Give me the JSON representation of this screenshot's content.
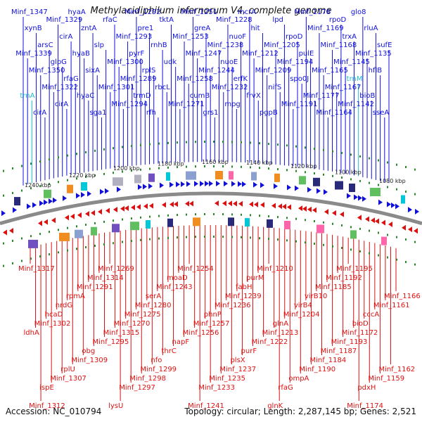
{
  "title": "Methylacidiphilum infernorum V4, complete genome",
  "footer": {
    "accession": "Accession: NC_010794",
    "topology": "Topology: circular; Length: 2,287,145 bp; Genes: 2,521"
  },
  "colors": {
    "forward": "#1010dd",
    "reverse": "#dd1010",
    "rna": "#22bbcc",
    "backbone": "#8a8a8a",
    "tick": "#2a8a2a"
  },
  "scale_labels": [
    "1240 kbp",
    "1220 kbp",
    "1200 kbp",
    "1180 kbp",
    "1160 kbp",
    "1140 kbp",
    "1120 kbp",
    "1100 kbp",
    "1080 kbp"
  ],
  "top_labels": [
    "Minf_1347",
    "Minf_1339",
    "trnA",
    "xynB",
    "Minf_1350",
    "cirA",
    "arsC",
    "Minf_1322",
    "Minf_1329",
    "glpG",
    "cirA",
    "cirA",
    "rfaG",
    "hyaA",
    "hyaB",
    "hyaC",
    "zntA",
    "sixA",
    "sga1",
    "slp",
    "Minf_1301",
    "rfaC",
    "Minf_1300",
    "Minf_1294",
    "Minf_1293",
    "Minf_1289",
    "Minf_1292",
    "pyrF",
    "trmD",
    "pre1",
    "rplS",
    "rfh",
    "rnhB",
    "rbcL",
    "tktA",
    "udk",
    "Minf_1271",
    "Minf_1253",
    "Minf_1258",
    "Minf_1251",
    "Minf_1247",
    "cumB",
    "greA",
    "Minf_1244",
    "grs1",
    "Minf_1238",
    "Minf_1232",
    "Minf_1228",
    "nuoE",
    "mpg",
    "nuoF",
    "erfK",
    "mcrA",
    "Minf_1212",
    "frvX",
    "hit",
    "Minf_1209",
    "pgpB",
    "Minf_1205",
    "nifS",
    "lpd",
    "Minf_1194",
    "Minf_1191",
    "rpoD",
    "spo0J",
    "Minf_1178",
    "pulE",
    "Minf_1177",
    "Minf_1169",
    "Minf_1165",
    "Minf_1164",
    "Minf_1168",
    "Minf_1167",
    "rpoD",
    "Minf_1145",
    "Minf_1142",
    "trxA",
    "trnM",
    "glo8",
    "Minf_1135",
    "bioB",
    "rluA",
    "hflB",
    "sseA",
    "sufE"
  ],
  "bottom_labels": [
    "Minf_1317",
    "ldhA",
    "Minf_1312",
    "Minf_1302",
    "ispE",
    "hcaD",
    "Minf_1307",
    "nrdG",
    "rplU",
    "rpmA",
    "Minf_1309",
    "Minf_1291",
    "obg",
    "Minf_1314",
    "Minf_1295",
    "Minf_1269",
    "Minf_1315",
    "lysU",
    "Minf_1270",
    "Minf_1297",
    "Minf_1275",
    "Minf_1298",
    "Minf_1280",
    "Minf_1299",
    "serA",
    "nfo",
    "Minf_1243",
    "thrC",
    "moaD",
    "napF",
    "Minf_1254",
    "Minf_1256",
    "Minf_1241",
    "Minf_1257",
    "Minf_1233",
    "phnP",
    "Minf_1235",
    "Minf_1236",
    "Minf_1237",
    "Minf_1239",
    "plsX",
    "fabH",
    "purF",
    "purM",
    "Minf_1222",
    "Minf_1210",
    "Minf_1213",
    "glnK",
    "glnA",
    "rfaG",
    "Minf_1204",
    "ompA",
    "virB4",
    "Minf_1190",
    "virB10",
    "Minf_1184",
    "Minf_1185",
    "Minf_1187",
    "Minf_1192",
    "Minf_1193",
    "Minf_1195",
    "Minf_1172",
    "Minf_1174",
    "bioD",
    "pdxH",
    "cccA",
    "Minf_1159",
    "Minf_1161",
    "Minf_1162",
    "Minf_1166"
  ]
}
